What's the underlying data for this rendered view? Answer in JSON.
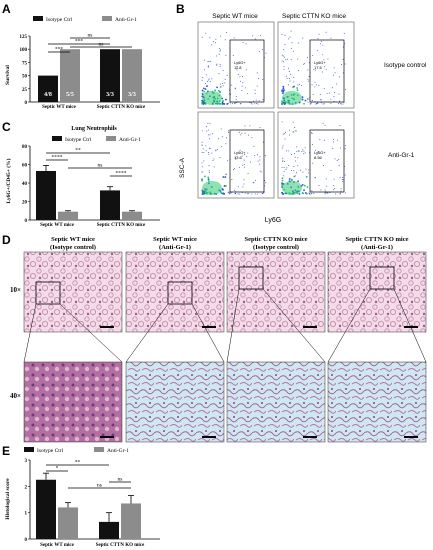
{
  "panel_letters": {
    "a": "A",
    "b": "B",
    "c": "C",
    "d": "D",
    "e": "E"
  },
  "colors": {
    "isotype": "#111111",
    "antigr1": "#8c8c8c",
    "tissue_pink": "#d9a6c6",
    "tissue_blue": "#7bb8cc",
    "flow_blue": "#2b4fd6"
  },
  "panel_a": {
    "legend": [
      "Isotype Ctrl",
      "Anti-Gr-1"
    ],
    "ylabel": "Survival",
    "yticks": [
      "0",
      "25",
      "50",
      "75",
      "100",
      "125"
    ],
    "bar_counts": [
      "4/8",
      "5/5",
      "3/3",
      "3/3"
    ],
    "groups": [
      "Septic WT mice",
      "Septic CTTN KO mice"
    ],
    "sig": [
      "***",
      "***",
      "ns",
      "ns"
    ]
  },
  "panel_b": {
    "col_titles": [
      "Septic WT mice",
      "Septic CTTN KO mice"
    ],
    "row_labels": [
      "Isotype control",
      "Anti-Gr-1"
    ],
    "gates": [
      [
        "Ly6G+",
        "11.8"
      ],
      [
        "Ly6G+",
        "17.5"
      ],
      [
        "Ly6G+",
        "13.6"
      ],
      [
        "Ly6G+",
        "8.56"
      ]
    ],
    "xaxis": "Ly6G",
    "yaxis": "SSC-A"
  },
  "panel_c": {
    "title": "Lung Neutrophils",
    "legend": [
      "Isotype Ctrl",
      "Anti-Gr-1"
    ],
    "ylabel": "Ly6G+/CD45+ (%)",
    "yticks": [
      "0",
      "20",
      "40",
      "60",
      "80"
    ],
    "groups": [
      "Septic WT mice",
      "Septic CTTN KO mice"
    ],
    "sig": [
      "**",
      "****",
      "ns",
      "****"
    ]
  },
  "panel_d": {
    "col_titles": [
      [
        "Septic WT mice",
        "(Isotype control)"
      ],
      [
        "Septic WT mice",
        "(Anti-Gr-1)"
      ],
      [
        "Septic CTTN KO mice",
        "(Isotype control)"
      ],
      [
        "Septic CTTN KO mice",
        "(Anti-Gr-1)"
      ]
    ],
    "row_labels": [
      "10×",
      "40×"
    ]
  },
  "panel_e": {
    "legend": [
      "Isotype Ctrl",
      "Anti-Gr-1"
    ],
    "ylabel": "Histological score",
    "yticks": [
      "0",
      "1",
      "2",
      "3"
    ],
    "groups": [
      "Septic WT mice",
      "Septic CTTN KO mice"
    ],
    "sig": [
      "*",
      "**",
      "ns",
      "ns"
    ]
  },
  "chart_data": [
    {
      "type": "bar",
      "panel": "A",
      "categories": [
        "Septic WT mice",
        "Septic CTTN KO mice"
      ],
      "series": [
        {
          "name": "Isotype Ctrl",
          "values": [
            50,
            100
          ]
        },
        {
          "name": "Anti-Gr-1",
          "values": [
            100,
            100
          ]
        }
      ],
      "ylabel": "Survival",
      "ylim": [
        0,
        125
      ]
    },
    {
      "type": "bar",
      "panel": "C",
      "title": "Lung Neutrophils",
      "categories": [
        "Septic WT mice",
        "Septic CTTN KO mice"
      ],
      "series": [
        {
          "name": "Isotype Ctrl",
          "values": [
            53,
            32
          ],
          "errors": [
            6,
            4
          ]
        },
        {
          "name": "Anti-Gr-1",
          "values": [
            9,
            9
          ],
          "errors": [
            1,
            1
          ]
        }
      ],
      "ylabel": "Ly6G+/CD45+ (%)",
      "ylim": [
        0,
        80
      ]
    },
    {
      "type": "bar",
      "panel": "E",
      "categories": [
        "Septic WT mice",
        "Septic CTTN KO mice"
      ],
      "series": [
        {
          "name": "Isotype Ctrl",
          "values": [
            2.25,
            0.65
          ],
          "errors": [
            0.25,
            0.35
          ]
        },
        {
          "name": "Anti-Gr-1",
          "values": [
            1.2,
            1.35
          ],
          "errors": [
            0.18,
            0.3
          ]
        }
      ],
      "ylabel": "Histological score",
      "ylim": [
        0,
        3
      ]
    }
  ]
}
